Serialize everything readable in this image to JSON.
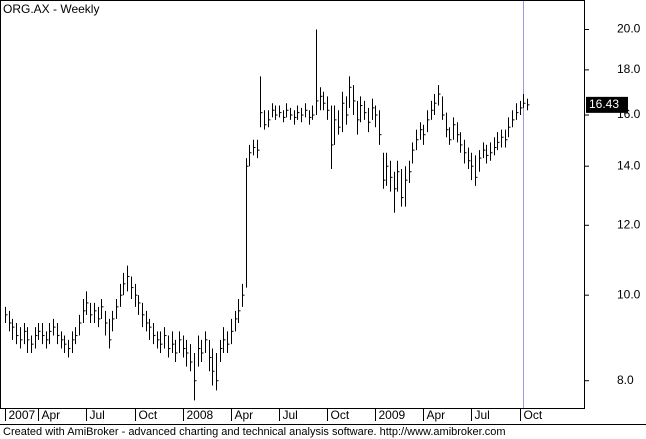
{
  "chart_data": {
    "type": "ohlc",
    "title": "ORG.AX - Weekly",
    "footer": "Created with AmiBroker - advanced charting and technical analysis software. http://www.amibroker.com",
    "log_scale": true,
    "ylim": [
      7.45,
      21.6
    ],
    "yticks": [
      {
        "value": 8,
        "label": "8.0"
      },
      {
        "value": 10,
        "label": "10.0"
      },
      {
        "value": 12,
        "label": "12.0"
      },
      {
        "value": 14,
        "label": "14.0"
      },
      {
        "value": 16,
        "label": "16.0"
      },
      {
        "value": 18,
        "label": "18.0"
      },
      {
        "value": 20,
        "label": "20.0"
      }
    ],
    "categories": [
      "2007",
      null,
      null,
      null,
      null,
      null,
      null,
      null,
      null,
      "Apr",
      null,
      null,
      null,
      null,
      null,
      null,
      null,
      null,
      null,
      null,
      null,
      null,
      "Jul",
      null,
      null,
      null,
      null,
      null,
      null,
      null,
      null,
      null,
      null,
      null,
      null,
      "Oct",
      null,
      null,
      null,
      null,
      null,
      null,
      null,
      null,
      null,
      null,
      null,
      null,
      "2008",
      null,
      null,
      null,
      null,
      null,
      null,
      null,
      null,
      null,
      null,
      null,
      null,
      "Apr",
      null,
      null,
      null,
      null,
      null,
      null,
      null,
      null,
      null,
      null,
      null,
      null,
      "Jul",
      null,
      null,
      null,
      null,
      null,
      null,
      null,
      null,
      null,
      null,
      null,
      null,
      "Oct",
      null,
      null,
      null,
      null,
      null,
      null,
      null,
      null,
      null,
      null,
      null,
      null,
      "2009",
      null,
      null,
      null,
      null,
      null,
      null,
      null,
      null,
      null,
      null,
      null,
      null,
      "Apr",
      null,
      null,
      null,
      null,
      null,
      null,
      null,
      null,
      null,
      null,
      null,
      null,
      "Jul",
      null,
      null,
      null,
      null,
      null,
      null,
      null,
      null,
      null,
      null,
      null,
      null,
      "Oct",
      null,
      null
    ],
    "series": [
      {
        "color": "#000000",
        "high": [
          9.7,
          9.6,
          9.4,
          9.3,
          9.2,
          9.3,
          9.2,
          9.0,
          9.2,
          9.3,
          9.3,
          9.1,
          9.3,
          9.4,
          9.3,
          9.1,
          9.0,
          8.9,
          9.1,
          9.2,
          9.5,
          9.9,
          10.1,
          9.8,
          9.8,
          9.7,
          9.9,
          9.6,
          9.4,
          9.6,
          9.9,
          10.3,
          10.6,
          10.8,
          10.5,
          10.3,
          10.0,
          9.8,
          9.6,
          9.4,
          9.3,
          9.1,
          9.1,
          9.2,
          9.0,
          9.1,
          8.9,
          9.1,
          9.0,
          8.9,
          8.8,
          8.6,
          9.0,
          8.9,
          9.1,
          8.9,
          8.7,
          8.6,
          8.9,
          9.2,
          9.1,
          9.4,
          9.6,
          9.9,
          10.3,
          14.3,
          14.8,
          15.0,
          15.0,
          17.7,
          16.2,
          16.2,
          16.5,
          16.4,
          16.4,
          16.2,
          16.5,
          16.3,
          16.2,
          16.4,
          16.3,
          16.5,
          16.2,
          16.4,
          20.0,
          17.2,
          17.0,
          16.8,
          16.4,
          16.4,
          16.2,
          17.0,
          16.8,
          17.7,
          17.3,
          16.6,
          16.8,
          16.6,
          16.3,
          16.7,
          16.4,
          16.2,
          14.5,
          14.5,
          14.2,
          13.8,
          14.2,
          13.9,
          14.0,
          14.2,
          14.9,
          15.4,
          15.7,
          15.6,
          16.2,
          16.6,
          16.9,
          17.3,
          16.8,
          16.1,
          15.5,
          15.9,
          15.7,
          15.3,
          15.0,
          14.7,
          14.5,
          14.4,
          14.6,
          14.9,
          14.8,
          14.9,
          15.1,
          15.3,
          15.4,
          15.4,
          15.9,
          16.2,
          16.5,
          16.6,
          16.9,
          16.7
        ],
        "low": [
          9.3,
          9.1,
          8.9,
          8.8,
          8.7,
          8.8,
          8.6,
          8.6,
          8.7,
          8.9,
          8.8,
          8.7,
          8.8,
          9.0,
          8.8,
          8.7,
          8.6,
          8.5,
          8.6,
          8.8,
          9.0,
          9.3,
          9.5,
          9.3,
          9.3,
          9.2,
          9.4,
          9.0,
          8.7,
          9.1,
          9.4,
          9.7,
          10.0,
          10.1,
          9.9,
          9.7,
          9.5,
          9.2,
          9.1,
          8.9,
          8.8,
          8.7,
          8.6,
          8.7,
          8.5,
          8.6,
          8.4,
          8.6,
          8.5,
          8.3,
          8.2,
          7.6,
          8.3,
          8.4,
          8.6,
          8.2,
          7.9,
          7.8,
          8.4,
          8.6,
          8.6,
          8.8,
          9.1,
          9.3,
          9.7,
          10.2,
          14.0,
          14.4,
          14.3,
          15.5,
          15.4,
          15.5,
          15.9,
          15.8,
          15.9,
          15.7,
          15.9,
          15.8,
          15.6,
          15.8,
          15.7,
          15.9,
          15.6,
          15.8,
          16.0,
          16.2,
          16.2,
          15.8,
          13.9,
          14.8,
          15.2,
          15.3,
          15.6,
          16.3,
          16.0,
          15.2,
          15.7,
          15.8,
          15.3,
          15.8,
          15.5,
          14.8,
          13.2,
          13.3,
          13.1,
          12.4,
          13.1,
          12.6,
          12.6,
          13.4,
          14.1,
          14.6,
          15.0,
          14.8,
          15.3,
          15.8,
          16.0,
          16.4,
          15.8,
          15.1,
          14.8,
          15.0,
          14.9,
          14.5,
          14.1,
          13.9,
          13.5,
          13.3,
          13.8,
          14.3,
          14.1,
          14.2,
          14.4,
          14.6,
          14.7,
          14.7,
          15.1,
          15.5,
          15.8,
          16.0,
          16.3,
          16.2
        ],
        "close": [
          9.5,
          9.3,
          9.2,
          9.0,
          8.9,
          9.1,
          8.9,
          8.8,
          9.0,
          9.1,
          9.0,
          8.9,
          9.1,
          9.2,
          9.0,
          8.9,
          8.8,
          8.7,
          8.9,
          9.0,
          9.3,
          9.6,
          9.8,
          9.5,
          9.6,
          9.4,
          9.7,
          9.3,
          8.9,
          9.4,
          9.7,
          10.0,
          10.3,
          10.5,
          10.2,
          10.0,
          9.8,
          9.5,
          9.3,
          9.2,
          9.0,
          8.9,
          8.8,
          9.0,
          8.7,
          8.8,
          8.6,
          8.9,
          8.7,
          8.6,
          8.4,
          8.0,
          8.7,
          8.6,
          8.9,
          8.5,
          8.2,
          8.0,
          8.7,
          8.9,
          8.8,
          9.1,
          9.4,
          9.6,
          10.0,
          14.0,
          14.5,
          14.7,
          14.6,
          16.1,
          15.6,
          15.8,
          16.2,
          16.0,
          16.1,
          15.9,
          16.2,
          16.0,
          15.9,
          16.1,
          16.0,
          16.2,
          15.9,
          16.0,
          16.6,
          16.8,
          16.5,
          16.2,
          14.8,
          15.8,
          15.5,
          16.5,
          16.0,
          17.2,
          16.6,
          15.8,
          16.4,
          16.1,
          15.7,
          16.3,
          16.0,
          15.2,
          13.5,
          14.0,
          13.6,
          13.2,
          13.8,
          12.9,
          13.5,
          13.8,
          14.6,
          15.0,
          15.4,
          15.2,
          15.8,
          16.2,
          16.5,
          16.9,
          16.0,
          15.4,
          15.0,
          15.6,
          15.2,
          14.8,
          14.5,
          14.2,
          14.0,
          13.6,
          14.3,
          14.6,
          14.4,
          14.5,
          14.7,
          14.9,
          15.1,
          15.0,
          15.5,
          15.8,
          16.1,
          16.3,
          16.5,
          16.43
        ]
      }
    ]
  }
}
